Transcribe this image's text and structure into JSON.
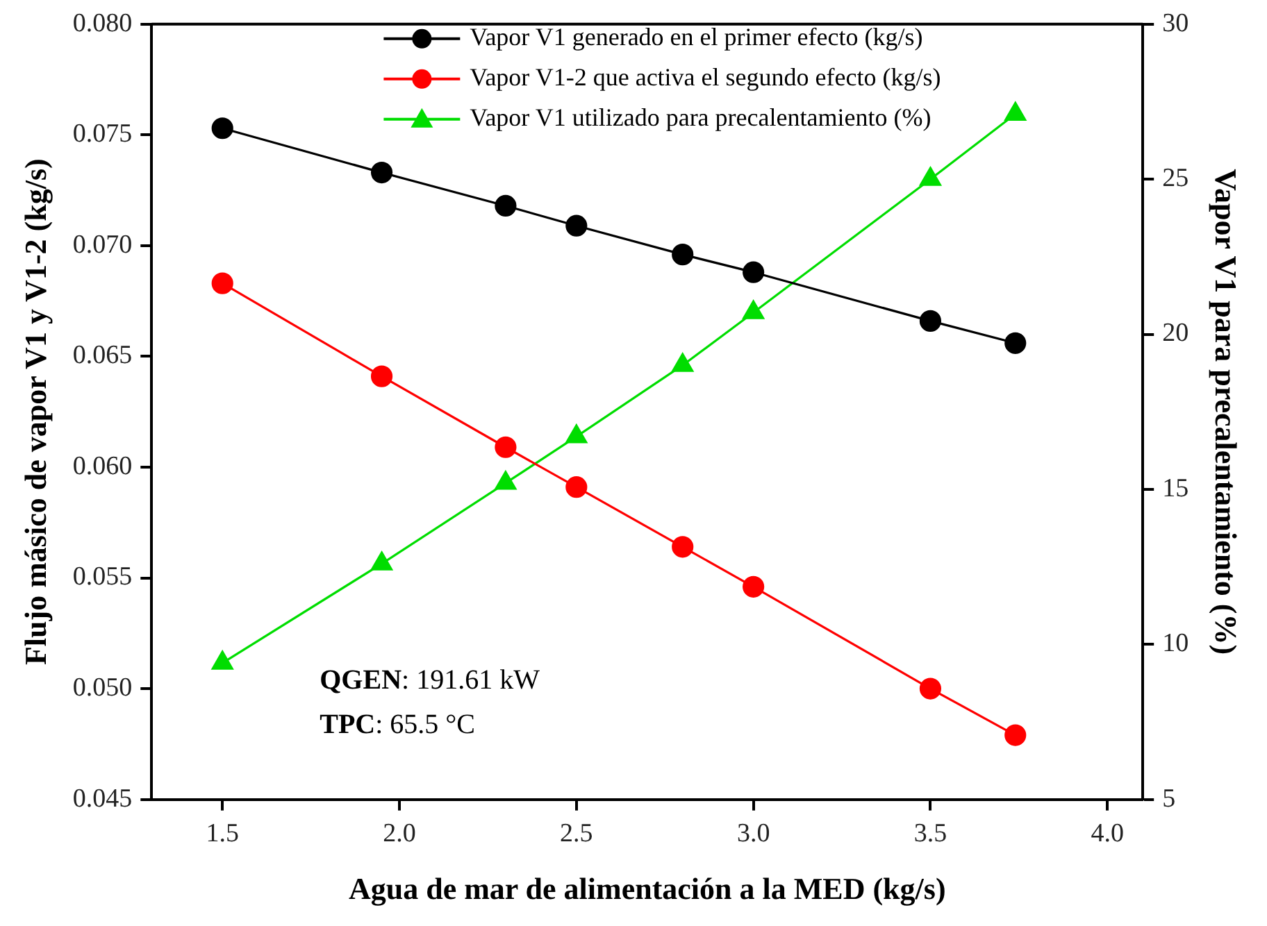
{
  "chart_data": {
    "type": "line",
    "xlabel": "Agua de mar de alimentación a la MED (kg/s)",
    "ylabel": "Flujo másico de vapor V1 y V1-2 (kg/s)",
    "y2label": "Vapor V1 para precalentamiento (%)",
    "x": [
      1.5,
      1.95,
      2.3,
      2.5,
      2.8,
      3.0,
      3.5,
      3.74
    ],
    "series": [
      {
        "name": "Vapor V1 generado en el primer efecto (kg/s)",
        "color": "#000000",
        "marker": "circle",
        "values": [
          0.0753,
          0.0733,
          0.0718,
          0.0709,
          0.0696,
          0.0688,
          0.0666,
          0.0656
        ]
      },
      {
        "name": "Vapor V1-2 que activa el segundo efecto (kg/s)",
        "color": "#ff0000",
        "marker": "circle",
        "values": [
          0.0683,
          0.0641,
          0.0609,
          0.0591,
          0.0564,
          0.0546,
          0.05,
          0.0479
        ]
      },
      {
        "name": "Vapor V1 utilizado para precalentamiento (%)",
        "color": "#00dd00",
        "marker": "triangle",
        "axis": "y2",
        "values": [
          9.4,
          12.6,
          15.2,
          16.7,
          19.0,
          20.7,
          25.0,
          27.1
        ]
      }
    ],
    "xlim": [
      1.3,
      4.1
    ],
    "xticks": [
      1.5,
      {
        "value": 2,
        "label": "2.0"
      },
      2.5,
      {
        "value": 3,
        "label": "3.0"
      },
      3.5,
      {
        "value": 4,
        "label": "4.0"
      }
    ],
    "ylim": [
      0.045,
      0.08
    ],
    "yticks": [
      {
        "value": 0.045,
        "label": "0.045"
      },
      {
        "value": 0.05,
        "label": "0.050"
      },
      {
        "value": 0.055,
        "label": "0.055"
      },
      {
        "value": 0.06,
        "label": "0.060"
      },
      {
        "value": 0.065,
        "label": "0.065"
      },
      {
        "value": 0.07,
        "label": "0.070"
      },
      {
        "value": 0.075,
        "label": "0.075"
      },
      {
        "value": 0.08,
        "label": "0.080"
      }
    ],
    "y2lim": [
      5,
      30
    ],
    "y2ticks": [
      5,
      10,
      15,
      20,
      25,
      30
    ],
    "annotations": [
      "QGEN: 191.61 kW",
      "TPC: 65.5 °C"
    ],
    "legend": "top",
    "line_style": "solid",
    "grid": false
  }
}
